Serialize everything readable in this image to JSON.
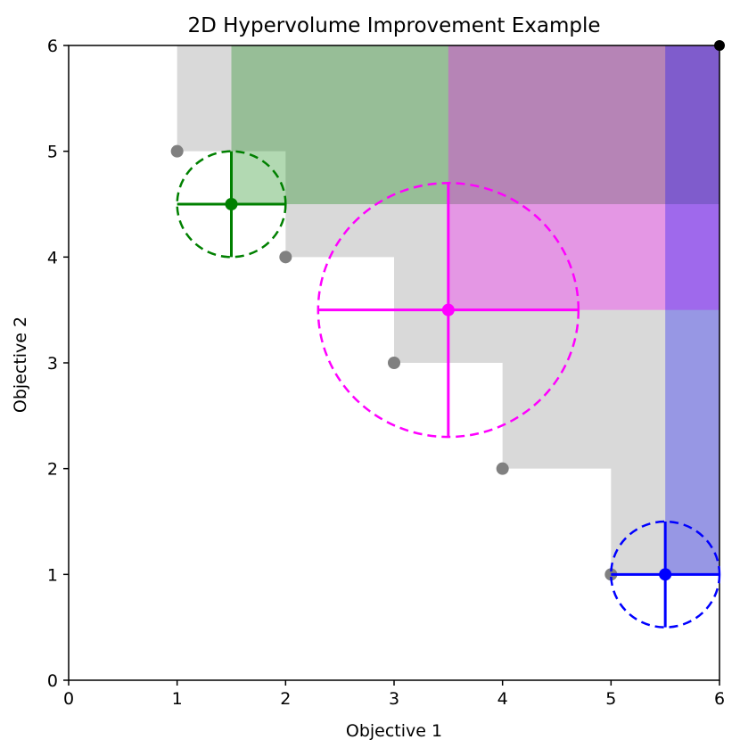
{
  "chart_data": {
    "type": "scatter",
    "title": "2D Hypervolume Improvement Example",
    "xlabel": "Objective 1",
    "ylabel": "Objective 2",
    "xlim": [
      0,
      6
    ],
    "ylim": [
      0,
      6
    ],
    "xticks": [
      "0",
      "1",
      "2",
      "3",
      "4",
      "5",
      "6"
    ],
    "yticks": [
      "0",
      "1",
      "2",
      "3",
      "4",
      "5",
      "6"
    ],
    "grid": false,
    "reference_point": [
      6,
      6
    ],
    "pareto_front": [
      {
        "x": 1,
        "y": 5
      },
      {
        "x": 2,
        "y": 4
      },
      {
        "x": 3,
        "y": 3
      },
      {
        "x": 4,
        "y": 2
      },
      {
        "x": 5,
        "y": 1
      }
    ],
    "candidates": [
      {
        "x": 1.5,
        "y": 4.5,
        "radius_x": 0.5,
        "radius_y": 0.5,
        "color": "#008000"
      },
      {
        "x": 3.5,
        "y": 3.5,
        "radius_x": 1.2,
        "radius_y": 1.2,
        "color": "#ff00ff"
      },
      {
        "x": 5.5,
        "y": 1.0,
        "radius_x": 0.5,
        "radius_y": 0.5,
        "color": "#0000ff"
      }
    ],
    "colors": {
      "dominated": "#bfbfbf",
      "pareto": "#808080",
      "reference": "#000000"
    }
  }
}
